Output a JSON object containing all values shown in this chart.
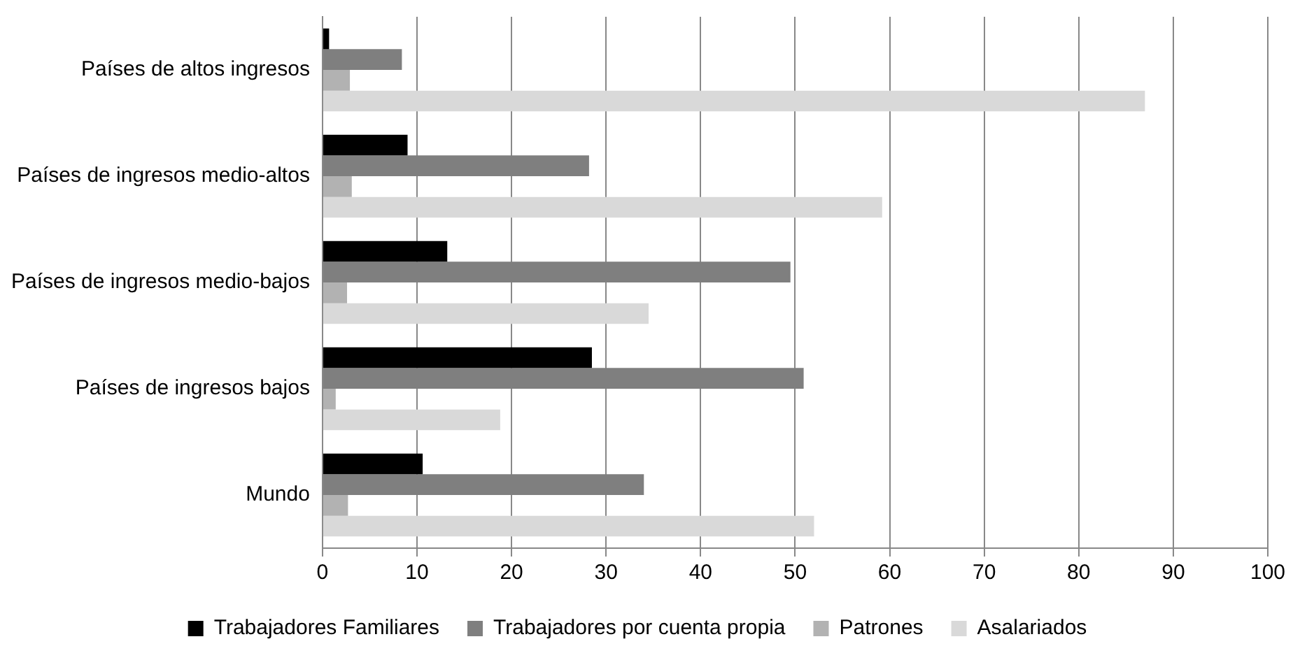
{
  "chart_data": {
    "type": "bar",
    "orientation": "horizontal",
    "categories": [
      "Países de altos ingresos",
      "Países de ingresos medio-altos",
      "Países de ingresos medio-bajos",
      "Países de ingresos bajos",
      "Mundo"
    ],
    "series": [
      {
        "name": "Trabajadores Familiares",
        "color": "#000000",
        "values": [
          0.7,
          9.0,
          13.2,
          28.5,
          10.6
        ]
      },
      {
        "name": "Trabajadores por cuenta propia",
        "color": "#7f7f7f",
        "values": [
          8.4,
          28.2,
          49.5,
          50.9,
          34.0
        ]
      },
      {
        "name": "Patrones",
        "color": "#b2b2b2",
        "values": [
          2.9,
          3.1,
          2.6,
          1.4,
          2.7
        ]
      },
      {
        "name": "Asalariados",
        "color": "#d9d9d9",
        "values": [
          87.0,
          59.2,
          34.5,
          18.8,
          52.0
        ]
      }
    ],
    "xlim": [
      0,
      100
    ],
    "xticks": [
      0,
      10,
      20,
      30,
      40,
      50,
      60,
      70,
      80,
      90,
      100
    ],
    "grid": "x",
    "legend": "bottom"
  }
}
